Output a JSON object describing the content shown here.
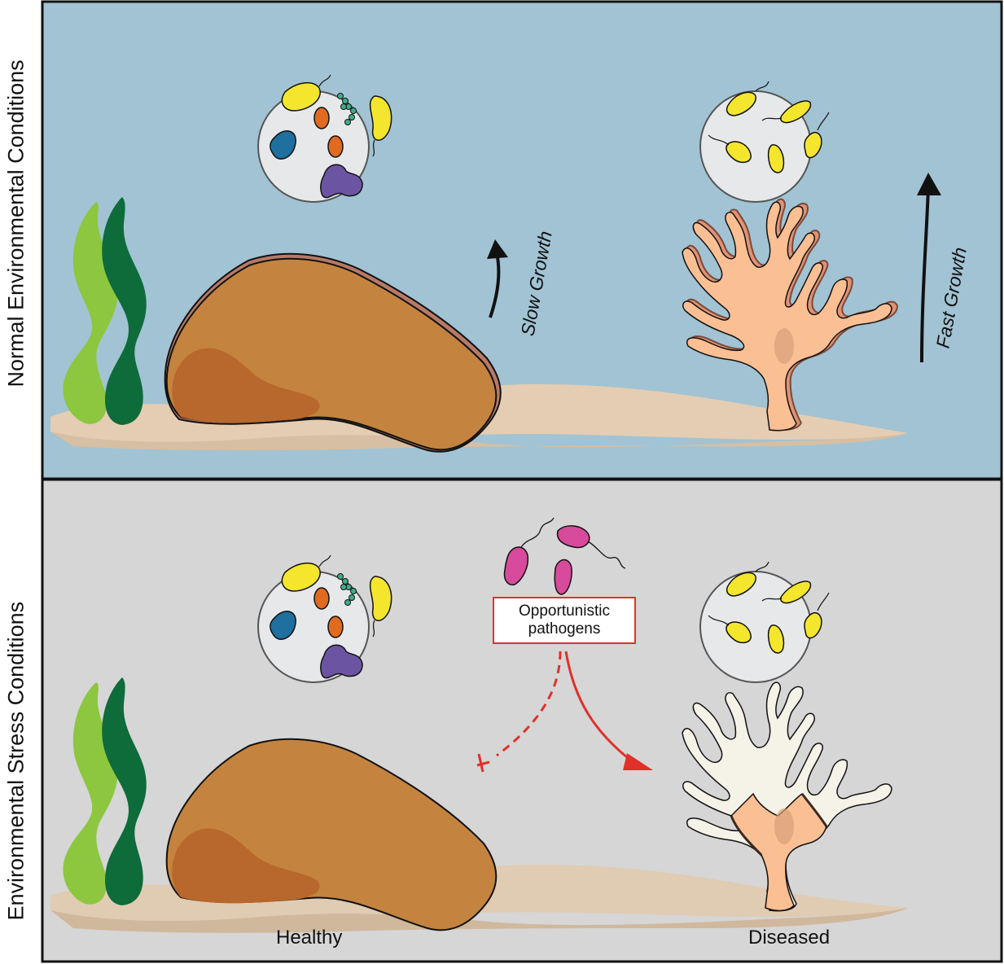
{
  "panels": {
    "top": {
      "row_label": "Normal Environmental Conditions"
    },
    "bottom": {
      "row_label": "Environmental Stress Conditions"
    }
  },
  "growth": {
    "slow": "Slow Growth",
    "fast": "Fast Growth"
  },
  "pathogens": {
    "line1": "Opportunistic",
    "line2": "pathogens"
  },
  "coral_state": {
    "healthy": "Healthy",
    "diseased": "Diseased"
  },
  "colors": {
    "water_normal": "#a1c3d4",
    "water_stress": "#d6d6d6",
    "massive_coral": "#c4843f",
    "branching_coral": "#fbbf94",
    "branching_tissue": "#e29275",
    "bleached_coral": "#f5f2e8",
    "sand": "#e4cdb2",
    "seagrass_light": "#8dc63f",
    "seagrass_dark": "#0e6b3a",
    "pathogen": "#d84a9c",
    "bacteria_yellow": "#f4e62c",
    "bacteria_orange": "#e06a1f",
    "bacteria_blue": "#1f6f9f",
    "bacteria_purple": "#6b55a3",
    "bacteria_green": "#3fae88",
    "inhibit_arrow": "#e0312b"
  }
}
